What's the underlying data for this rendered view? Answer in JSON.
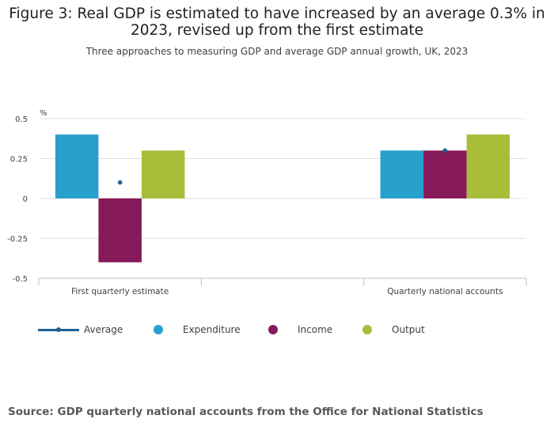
{
  "title": "Figure 3: Real GDP is estimated to have increased by an average 0.3% in 2023, revised up from the first estimate",
  "subtitle": "Three approaches to measuring GDP and average GDP annual growth, UK, 2023",
  "source": "Source: GDP quarterly national accounts from the Office for National Statistics",
  "colors": {
    "expenditure": "#27a0cc",
    "income": "#871a5b",
    "output": "#a8bd3a",
    "average": "#206095",
    "grid": "#e0e0e0",
    "axis": "#bfc0c2"
  },
  "legend": [
    {
      "key": "average",
      "label": "Average",
      "kind": "line"
    },
    {
      "key": "expenditure",
      "label": "Expenditure",
      "kind": "dot"
    },
    {
      "key": "income",
      "label": "Income",
      "kind": "dot"
    },
    {
      "key": "output",
      "label": "Output",
      "kind": "dot"
    }
  ],
  "chart_data": {
    "type": "bar",
    "ylabel": "%",
    "ylim": [
      -0.5,
      0.5
    ],
    "yticks": [
      0.5,
      0.25,
      0,
      -0.25,
      -0.5
    ],
    "ytick_labels": [
      "0.5",
      "0.25",
      "0",
      "-0.25",
      "-0.5"
    ],
    "grid": true,
    "legend_position": "bottom",
    "categories": [
      "First quarterly estimate",
      "",
      "Quarterly national accounts"
    ],
    "series": [
      {
        "name": "Expenditure",
        "key": "expenditure",
        "values": [
          0.4,
          null,
          0.3
        ]
      },
      {
        "name": "Income",
        "key": "income",
        "values": [
          -0.4,
          null,
          0.3
        ]
      },
      {
        "name": "Output",
        "key": "output",
        "values": [
          0.3,
          null,
          0.4
        ]
      }
    ],
    "average": {
      "name": "Average",
      "values": [
        0.1,
        null,
        0.3
      ]
    }
  }
}
